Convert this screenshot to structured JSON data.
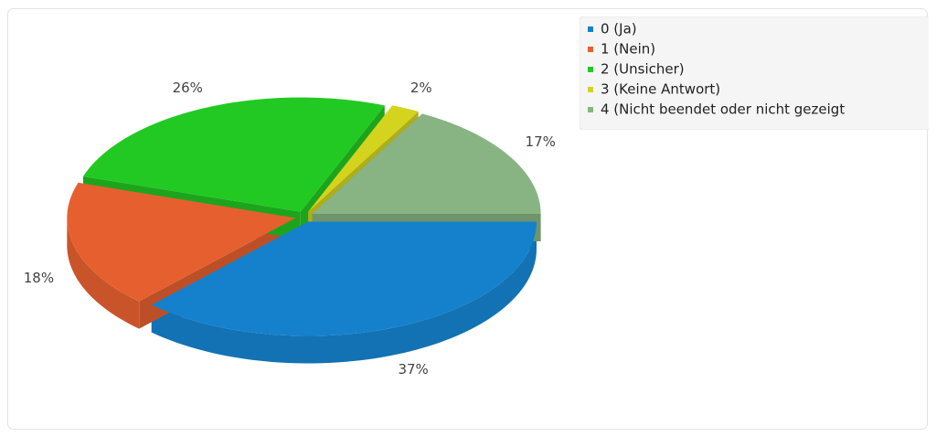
{
  "chart_data": {
    "type": "pie",
    "categories": [
      "0 (Ja)",
      "1 (Nein)",
      "2 (Unsicher)",
      "3 (Keine Antwort)",
      "4 (Nicht beendet oder nicht gezeigt"
    ],
    "values": [
      37,
      18,
      26,
      2,
      17
    ],
    "value_labels": [
      "37%",
      "18%",
      "26%",
      "2%",
      "17%"
    ],
    "colors": [
      "#1581cc",
      "#e6602f",
      "#22c922",
      "#d4d41e",
      "#88b483"
    ],
    "legend": "top-right"
  }
}
